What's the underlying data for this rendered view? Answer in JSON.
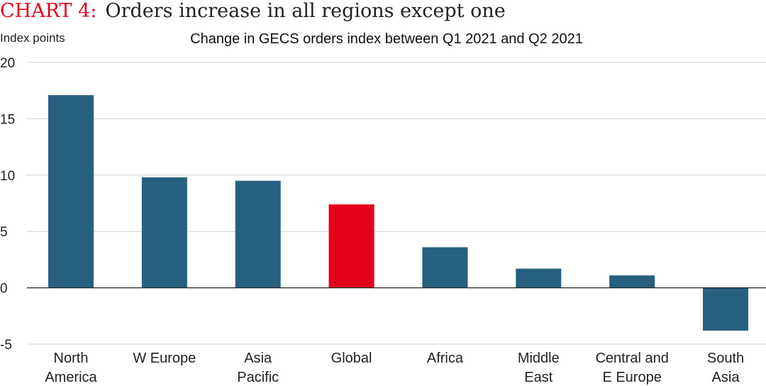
{
  "header": {
    "title_prefix": "CHART 4:",
    "title_text": "Orders increase in all regions except one"
  },
  "chart_data": {
    "type": "bar",
    "title": "Change in GECS orders index between Q1 2021 and Q2 2021",
    "ylabel": "Index points",
    "xlabel": "",
    "ylim": [
      -5,
      20
    ],
    "yticks": [
      -5,
      0,
      5,
      10,
      15,
      20
    ],
    "grid": true,
    "categories": [
      [
        "North",
        "America"
      ],
      [
        "W Europe"
      ],
      [
        "Asia",
        "Pacific"
      ],
      [
        "Global"
      ],
      [
        "Africa"
      ],
      [
        "Middle",
        "East"
      ],
      [
        "Central and",
        "E Europe"
      ],
      [
        "South",
        "Asia"
      ]
    ],
    "values": [
      17.1,
      9.8,
      9.5,
      7.4,
      3.6,
      1.7,
      1.1,
      -3.8
    ],
    "highlight_index": 3,
    "colors": {
      "bar": "#27607f",
      "highlight": "#e3001b"
    }
  }
}
